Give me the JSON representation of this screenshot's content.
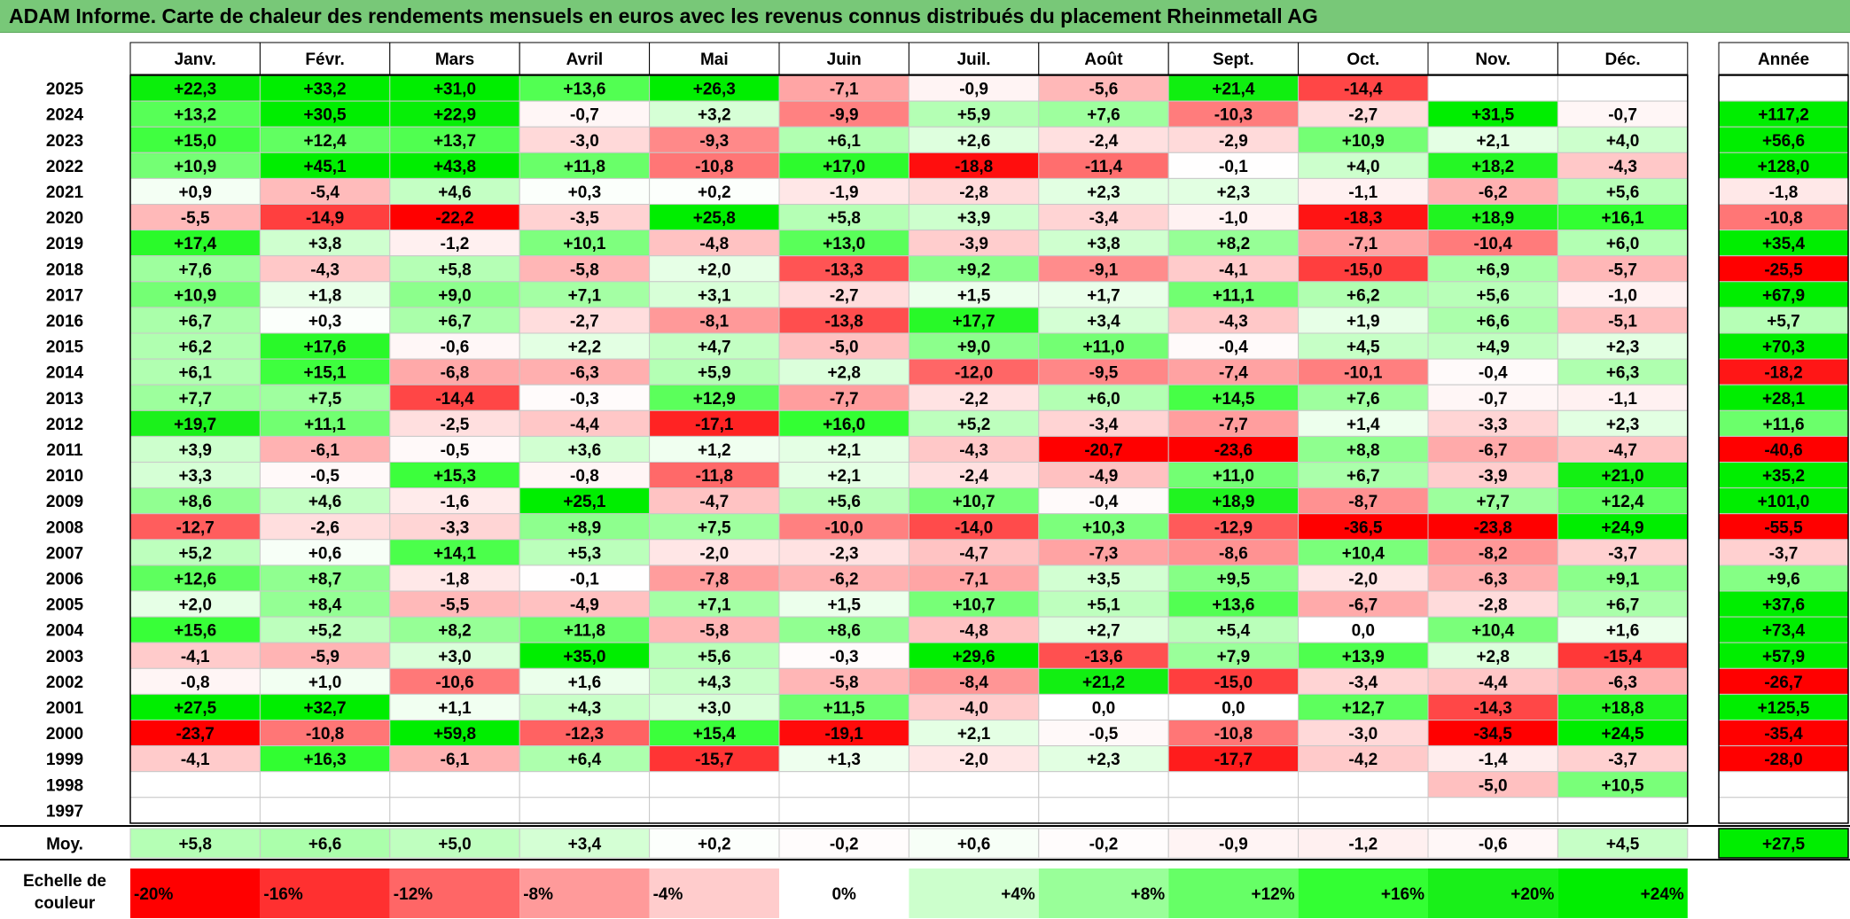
{
  "title": "ADAM Informe. Carte de chaleur des rendements mensuels en euros avec les revenus connus distribués du placement Rheinmetall AG",
  "chart_data": {
    "type": "heatmap",
    "title": "ADAM Informe. Carte de chaleur des rendements mensuels en euros avec les revenus connus distribués du placement Rheinmetall AG",
    "months": [
      "Janv.",
      "Févr.",
      "Mars",
      "Avril",
      "Mai",
      "Juin",
      "Juil.",
      "Août",
      "Sept.",
      "Oct.",
      "Nov.",
      "Déc."
    ],
    "year_label": "Année",
    "rows": [
      {
        "year": "2025",
        "values": [
          "+22,3",
          "+33,2",
          "+31,0",
          "+13,6",
          "+26,3",
          "-7,1",
          "-0,9",
          "-5,6",
          "+21,4",
          "-14,4",
          "",
          ""
        ],
        "annual": ""
      },
      {
        "year": "2024",
        "values": [
          "+13,2",
          "+30,5",
          "+22,9",
          "-0,7",
          "+3,2",
          "-9,9",
          "+5,9",
          "+7,6",
          "-10,3",
          "-2,7",
          "+31,5",
          "-0,7"
        ],
        "annual": "+117,2"
      },
      {
        "year": "2023",
        "values": [
          "+15,0",
          "+12,4",
          "+13,7",
          "-3,0",
          "-9,3",
          "+6,1",
          "+2,6",
          "-2,4",
          "-2,9",
          "+10,9",
          "+2,1",
          "+4,0"
        ],
        "annual": "+56,6"
      },
      {
        "year": "2022",
        "values": [
          "+10,9",
          "+45,1",
          "+43,8",
          "+11,8",
          "-10,8",
          "+17,0",
          "-18,8",
          "-11,4",
          "-0,1",
          "+4,0",
          "+18,2",
          "-4,3"
        ],
        "annual": "+128,0"
      },
      {
        "year": "2021",
        "values": [
          "+0,9",
          "-5,4",
          "+4,6",
          "+0,3",
          "+0,2",
          "-1,9",
          "-2,8",
          "+2,3",
          "+2,3",
          "-1,1",
          "-6,2",
          "+5,6"
        ],
        "annual": "-1,8"
      },
      {
        "year": "2020",
        "values": [
          "-5,5",
          "-14,9",
          "-22,2",
          "-3,5",
          "+25,8",
          "+5,8",
          "+3,9",
          "-3,4",
          "-1,0",
          "-18,3",
          "+18,9",
          "+16,1"
        ],
        "annual": "-10,8"
      },
      {
        "year": "2019",
        "values": [
          "+17,4",
          "+3,8",
          "-1,2",
          "+10,1",
          "-4,8",
          "+13,0",
          "-3,9",
          "+3,8",
          "+8,2",
          "-7,1",
          "-10,4",
          "+6,0"
        ],
        "annual": "+35,4"
      },
      {
        "year": "2018",
        "values": [
          "+7,6",
          "-4,3",
          "+5,8",
          "-5,8",
          "+2,0",
          "-13,3",
          "+9,2",
          "-9,1",
          "-4,1",
          "-15,0",
          "+6,9",
          "-5,7"
        ],
        "annual": "-25,5"
      },
      {
        "year": "2017",
        "values": [
          "+10,9",
          "+1,8",
          "+9,0",
          "+7,1",
          "+3,1",
          "-2,7",
          "+1,5",
          "+1,7",
          "+11,1",
          "+6,2",
          "+5,6",
          "-1,0"
        ],
        "annual": "+67,9"
      },
      {
        "year": "2016",
        "values": [
          "+6,7",
          "+0,3",
          "+6,7",
          "-2,7",
          "-8,1",
          "-13,8",
          "+17,7",
          "+3,4",
          "-4,3",
          "+1,9",
          "+6,6",
          "-5,1"
        ],
        "annual": "+5,7"
      },
      {
        "year": "2015",
        "values": [
          "+6,2",
          "+17,6",
          "-0,6",
          "+2,2",
          "+4,7",
          "-5,0",
          "+9,0",
          "+11,0",
          "-0,4",
          "+4,5",
          "+4,9",
          "+2,3"
        ],
        "annual": "+70,3"
      },
      {
        "year": "2014",
        "values": [
          "+6,1",
          "+15,1",
          "-6,8",
          "-6,3",
          "+5,9",
          "+2,8",
          "-12,0",
          "-9,5",
          "-7,4",
          "-10,1",
          "-0,4",
          "+6,3"
        ],
        "annual": "-18,2"
      },
      {
        "year": "2013",
        "values": [
          "+7,7",
          "+7,5",
          "-14,4",
          "-0,3",
          "+12,9",
          "-7,7",
          "-2,2",
          "+6,0",
          "+14,5",
          "+7,6",
          "-0,7",
          "-1,1"
        ],
        "annual": "+28,1"
      },
      {
        "year": "2012",
        "values": [
          "+19,7",
          "+11,1",
          "-2,5",
          "-4,4",
          "-17,1",
          "+16,0",
          "+5,2",
          "-3,4",
          "-7,7",
          "+1,4",
          "-3,3",
          "+2,3"
        ],
        "annual": "+11,6"
      },
      {
        "year": "2011",
        "values": [
          "+3,9",
          "-6,1",
          "-0,5",
          "+3,6",
          "+1,2",
          "+2,1",
          "-4,3",
          "-20,7",
          "-23,6",
          "+8,8",
          "-6,7",
          "-4,7"
        ],
        "annual": "-40,6"
      },
      {
        "year": "2010",
        "values": [
          "+3,3",
          "-0,5",
          "+15,3",
          "-0,8",
          "-11,8",
          "+2,1",
          "-2,4",
          "-4,9",
          "+11,0",
          "+6,7",
          "-3,9",
          "+21,0"
        ],
        "annual": "+35,2"
      },
      {
        "year": "2009",
        "values": [
          "+8,6",
          "+4,6",
          "-1,6",
          "+25,1",
          "-4,7",
          "+5,6",
          "+10,7",
          "-0,4",
          "+18,9",
          "-8,7",
          "+7,7",
          "+12,4"
        ],
        "annual": "+101,0"
      },
      {
        "year": "2008",
        "values": [
          "-12,7",
          "-2,6",
          "-3,3",
          "+8,9",
          "+7,5",
          "-10,0",
          "-14,0",
          "+10,3",
          "-12,9",
          "-36,5",
          "-23,8",
          "+24,9"
        ],
        "annual": "-55,5"
      },
      {
        "year": "2007",
        "values": [
          "+5,2",
          "+0,6",
          "+14,1",
          "+5,3",
          "-2,0",
          "-2,3",
          "-4,7",
          "-7,3",
          "-8,6",
          "+10,4",
          "-8,2",
          "-3,7"
        ],
        "annual": "-3,7"
      },
      {
        "year": "2006",
        "values": [
          "+12,6",
          "+8,7",
          "-1,8",
          "-0,1",
          "-7,8",
          "-6,2",
          "-7,1",
          "+3,5",
          "+9,5",
          "-2,0",
          "-6,3",
          "+9,1"
        ],
        "annual": "+9,6"
      },
      {
        "year": "2005",
        "values": [
          "+2,0",
          "+8,4",
          "-5,5",
          "-4,9",
          "+7,1",
          "+1,5",
          "+10,7",
          "+5,1",
          "+13,6",
          "-6,7",
          "-2,8",
          "+6,7"
        ],
        "annual": "+37,6"
      },
      {
        "year": "2004",
        "values": [
          "+15,6",
          "+5,2",
          "+8,2",
          "+11,8",
          "-5,8",
          "+8,6",
          "-4,8",
          "+2,7",
          "+5,4",
          "0,0",
          "+10,4",
          "+1,6"
        ],
        "annual": "+73,4"
      },
      {
        "year": "2003",
        "values": [
          "-4,1",
          "-5,9",
          "+3,0",
          "+35,0",
          "+5,6",
          "-0,3",
          "+29,6",
          "-13,6",
          "+7,9",
          "+13,9",
          "+2,8",
          "-15,4"
        ],
        "annual": "+57,9"
      },
      {
        "year": "2002",
        "values": [
          "-0,8",
          "+1,0",
          "-10,6",
          "+1,6",
          "+4,3",
          "-5,8",
          "-8,4",
          "+21,2",
          "-15,0",
          "-3,4",
          "-4,4",
          "-6,3"
        ],
        "annual": "-26,7"
      },
      {
        "year": "2001",
        "values": [
          "+27,5",
          "+32,7",
          "+1,1",
          "+4,3",
          "+3,0",
          "+11,5",
          "-4,0",
          "0,0",
          "0,0",
          "+12,7",
          "-14,3",
          "+18,8"
        ],
        "annual": "+125,5"
      },
      {
        "year": "2000",
        "values": [
          "-23,7",
          "-10,8",
          "+59,8",
          "-12,3",
          "+15,4",
          "-19,1",
          "+2,1",
          "-0,5",
          "-10,8",
          "-3,0",
          "-34,5",
          "+24,5"
        ],
        "annual": "-35,4"
      },
      {
        "year": "1999",
        "values": [
          "-4,1",
          "+16,3",
          "-6,1",
          "+6,4",
          "-15,7",
          "+1,3",
          "-2,0",
          "+2,3",
          "-17,7",
          "-4,2",
          "-1,4",
          "-3,7"
        ],
        "annual": "-28,0"
      },
      {
        "year": "1998",
        "values": [
          "",
          "",
          "",
          "",
          "",
          "",
          "",
          "",
          "",
          "",
          "-5,0",
          "+10,5"
        ],
        "annual": ""
      },
      {
        "year": "1997",
        "values": [
          "",
          "",
          "",
          "",
          "",
          "",
          "",
          "",
          "",
          "",
          "",
          ""
        ],
        "annual": ""
      }
    ],
    "average": {
      "label": "Moy.",
      "values": [
        "+5,8",
        "+6,6",
        "+5,0",
        "+3,4",
        "+0,2",
        "-0,2",
        "+0,6",
        "-0,2",
        "-0,9",
        "-1,2",
        "-0,6",
        "+4,5"
      ],
      "annual": "+27,5"
    },
    "color_scale": {
      "label_line1": "Echelle de",
      "label_line2": "couleur",
      "stops": [
        {
          "label": "-20%",
          "value": -20,
          "color": "#ff0000"
        },
        {
          "label": "-16%",
          "value": -16,
          "color": "#ff3030"
        },
        {
          "label": "-12%",
          "value": -12,
          "color": "#ff6666"
        },
        {
          "label": "-8%",
          "value": -8,
          "color": "#ff9a9a"
        },
        {
          "label": "-4%",
          "value": -4,
          "color": "#ffcccc"
        },
        {
          "label": "0%",
          "value": 0,
          "color": "#ffffff"
        },
        {
          "label": "+4%",
          "value": 4,
          "color": "#ccffcc"
        },
        {
          "label": "+8%",
          "value": 8,
          "color": "#99ff99"
        },
        {
          "label": "+12%",
          "value": 12,
          "color": "#66ff66"
        },
        {
          "label": "+16%",
          "value": 16,
          "color": "#33ff33"
        },
        {
          "label": "+20%",
          "value": 20,
          "color": "#19f019"
        },
        {
          "label": "+24%",
          "value": 24,
          "color": "#00ee00"
        }
      ]
    },
    "colors": {
      "title_bar": "#78c878",
      "border": "#000000"
    }
  }
}
